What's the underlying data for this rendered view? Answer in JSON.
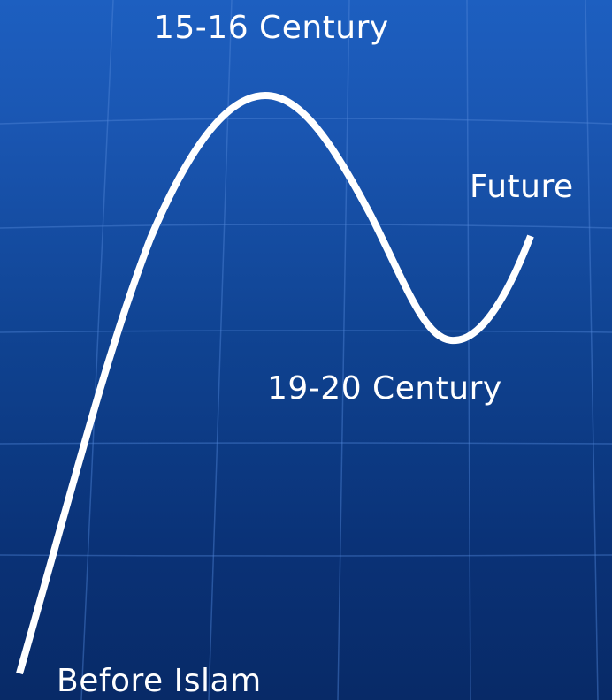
{
  "diagram": {
    "labels": {
      "peak": "15-16 Century",
      "future": "Future",
      "trough": "19-20 Century",
      "start": "Before Islam"
    },
    "colors": {
      "background_top": "#1d5fc0",
      "background_bottom": "#082a67",
      "grid_line": "#4f86d6",
      "curve": "#ffffff",
      "text": "#ffffff"
    }
  }
}
